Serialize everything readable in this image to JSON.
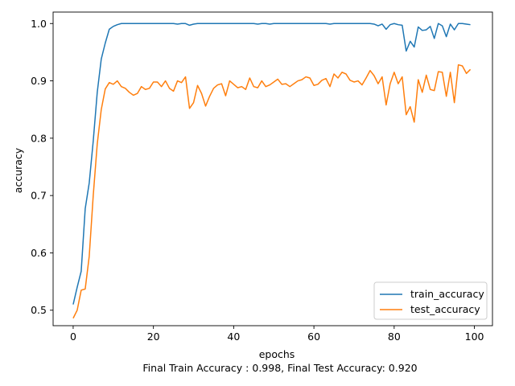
{
  "chart_data": {
    "type": "line",
    "title": "",
    "xlabel": "epochs",
    "ylabel": "accuracy",
    "footer": "Final Train Accuracy : 0.998, Final Test Accuracy: 0.920",
    "xlim": [
      -5,
      104.5
    ],
    "ylim": [
      0.473,
      1.02
    ],
    "xticks": [
      0,
      20,
      40,
      60,
      80,
      100
    ],
    "xtick_labels": [
      "0",
      "20",
      "40",
      "60",
      "80",
      "100"
    ],
    "yticks": [
      0.5,
      0.6,
      0.7,
      0.8,
      0.9,
      1.0
    ],
    "ytick_labels": [
      "0.5",
      "0.6",
      "0.7",
      "0.8",
      "0.9",
      "1.0"
    ],
    "grid": false,
    "legend_position": "lower-right",
    "series": [
      {
        "name": "train_accuracy",
        "color": "#1f77b4",
        "x": [
          0,
          1,
          2,
          3,
          4,
          5,
          6,
          7,
          8,
          9,
          10,
          11,
          12,
          13,
          14,
          15,
          16,
          17,
          18,
          19,
          20,
          21,
          22,
          23,
          24,
          25,
          26,
          27,
          28,
          29,
          30,
          31,
          32,
          33,
          34,
          35,
          36,
          37,
          38,
          39,
          40,
          41,
          42,
          43,
          44,
          45,
          46,
          47,
          48,
          49,
          50,
          51,
          52,
          53,
          54,
          55,
          56,
          57,
          58,
          59,
          60,
          61,
          62,
          63,
          64,
          65,
          66,
          67,
          68,
          69,
          70,
          71,
          72,
          73,
          74,
          75,
          76,
          77,
          78,
          79,
          80,
          81,
          82,
          83,
          84,
          85,
          86,
          87,
          88,
          89,
          90,
          91,
          92,
          93,
          94,
          95,
          96,
          97,
          98,
          99
        ],
        "values": [
          0.51,
          0.54,
          0.568,
          0.677,
          0.722,
          0.795,
          0.88,
          0.938,
          0.966,
          0.99,
          0.995,
          0.998,
          1.0,
          1.0,
          1.0,
          1.0,
          1.0,
          1.0,
          1.0,
          1.0,
          1.0,
          1.0,
          1.0,
          1.0,
          1.0,
          1.0,
          0.999,
          1.0,
          1.0,
          0.997,
          0.999,
          1.0,
          1.0,
          1.0,
          1.0,
          1.0,
          1.0,
          1.0,
          1.0,
          1.0,
          1.0,
          1.0,
          1.0,
          1.0,
          1.0,
          1.0,
          0.999,
          1.0,
          1.0,
          0.999,
          1.0,
          1.0,
          1.0,
          1.0,
          1.0,
          1.0,
          1.0,
          1.0,
          1.0,
          1.0,
          1.0,
          1.0,
          1.0,
          1.0,
          0.999,
          1.0,
          1.0,
          1.0,
          1.0,
          1.0,
          1.0,
          1.0,
          1.0,
          1.0,
          1.0,
          0.999,
          0.996,
          0.999,
          0.99,
          0.998,
          1.0,
          0.998,
          0.997,
          0.952,
          0.969,
          0.959,
          0.994,
          0.988,
          0.989,
          0.995,
          0.974,
          1.0,
          0.996,
          0.977,
          0.999,
          0.989,
          1.0,
          1.0,
          0.999,
          0.998
        ]
      },
      {
        "name": "test_accuracy",
        "color": "#ff7f0e",
        "x": [
          0,
          1,
          2,
          3,
          4,
          5,
          6,
          7,
          8,
          9,
          10,
          11,
          12,
          13,
          14,
          15,
          16,
          17,
          18,
          19,
          20,
          21,
          22,
          23,
          24,
          25,
          26,
          27,
          28,
          29,
          30,
          31,
          32,
          33,
          34,
          35,
          36,
          37,
          38,
          39,
          40,
          41,
          42,
          43,
          44,
          45,
          46,
          47,
          48,
          49,
          50,
          51,
          52,
          53,
          54,
          55,
          56,
          57,
          58,
          59,
          60,
          61,
          62,
          63,
          64,
          65,
          66,
          67,
          68,
          69,
          70,
          71,
          72,
          73,
          74,
          75,
          76,
          77,
          78,
          79,
          80,
          81,
          82,
          83,
          84,
          85,
          86,
          87,
          88,
          89,
          90,
          91,
          92,
          93,
          94,
          95,
          96,
          97,
          98,
          99
        ],
        "values": [
          0.486,
          0.5,
          0.535,
          0.537,
          0.594,
          0.7,
          0.79,
          0.85,
          0.886,
          0.897,
          0.894,
          0.9,
          0.89,
          0.887,
          0.88,
          0.875,
          0.878,
          0.89,
          0.885,
          0.887,
          0.898,
          0.898,
          0.89,
          0.9,
          0.887,
          0.882,
          0.9,
          0.897,
          0.907,
          0.852,
          0.862,
          0.892,
          0.878,
          0.856,
          0.873,
          0.887,
          0.893,
          0.895,
          0.874,
          0.9,
          0.894,
          0.888,
          0.89,
          0.885,
          0.905,
          0.89,
          0.888,
          0.9,
          0.89,
          0.893,
          0.898,
          0.903,
          0.894,
          0.895,
          0.89,
          0.895,
          0.9,
          0.902,
          0.907,
          0.905,
          0.892,
          0.894,
          0.901,
          0.904,
          0.89,
          0.912,
          0.905,
          0.915,
          0.912,
          0.901,
          0.898,
          0.9,
          0.893,
          0.905,
          0.918,
          0.909,
          0.895,
          0.907,
          0.858,
          0.895,
          0.915,
          0.895,
          0.907,
          0.841,
          0.855,
          0.828,
          0.902,
          0.88,
          0.91,
          0.885,
          0.883,
          0.916,
          0.915,
          0.873,
          0.915,
          0.862,
          0.928,
          0.926,
          0.913,
          0.92
        ]
      }
    ]
  }
}
